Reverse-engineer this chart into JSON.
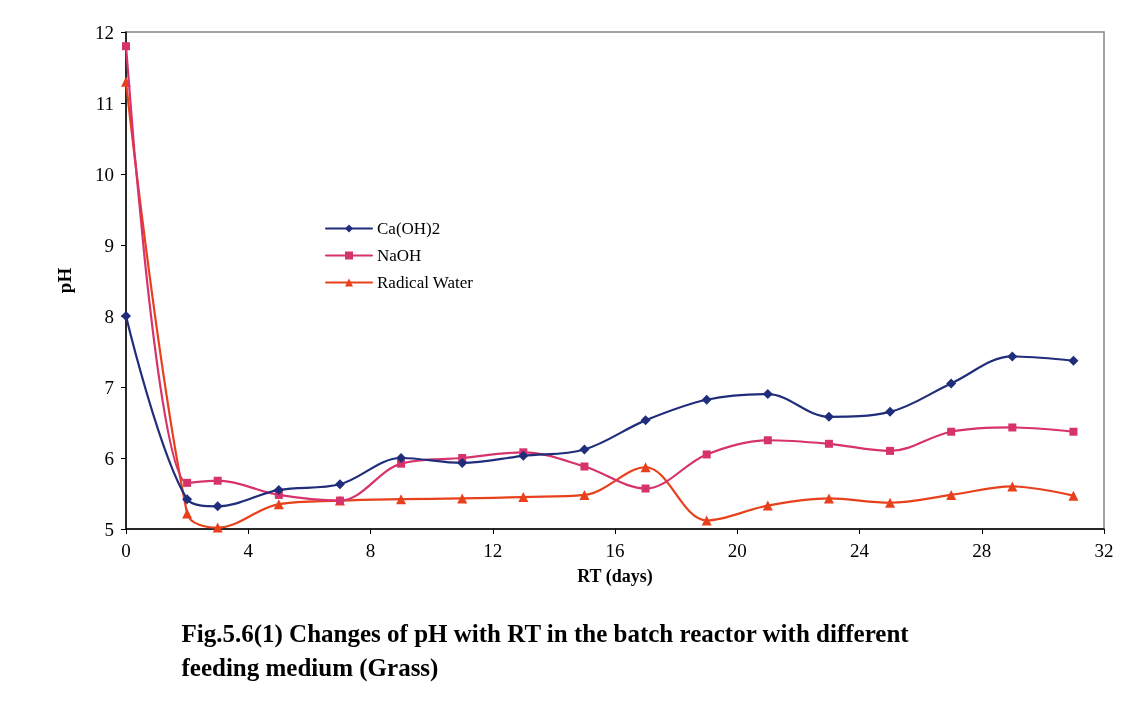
{
  "chart_data": {
    "type": "line",
    "title": "Fig.5.6(1) Changes of pH with RT in the batch reactor with different feeding medium (Grass)",
    "xlabel": "RT (days)",
    "ylabel": "pH",
    "x": [
      0,
      2,
      3,
      5,
      7,
      9,
      11,
      13,
      15,
      17,
      19,
      21,
      23,
      25,
      27,
      29,
      31
    ],
    "series": [
      {
        "name": "Ca(OH)2",
        "color": "#1f2d7b",
        "marker": "diamond",
        "values": [
          8.0,
          5.42,
          5.32,
          5.55,
          5.63,
          6.0,
          5.93,
          6.03,
          6.12,
          6.53,
          6.82,
          6.9,
          6.58,
          6.65,
          7.05,
          7.43,
          7.37
        ]
      },
      {
        "name": "NaOH",
        "color": "#d6336c",
        "marker": "square",
        "values": [
          11.8,
          5.65,
          5.68,
          5.48,
          5.4,
          5.92,
          6.0,
          6.08,
          5.88,
          5.57,
          6.05,
          6.25,
          6.2,
          6.1,
          6.37,
          6.43,
          6.37
        ]
      },
      {
        "name": "Radical Water",
        "color": "#e8401c",
        "marker": "triangle",
        "values": [
          11.3,
          5.22,
          5.02,
          5.35,
          5.4,
          5.42,
          5.43,
          5.45,
          5.48,
          5.87,
          5.12,
          5.33,
          5.43,
          5.37,
          5.48,
          5.6,
          5.47
        ]
      }
    ],
    "xlim": [
      0,
      32
    ],
    "xticks": [
      0,
      4,
      8,
      12,
      16,
      20,
      24,
      28,
      32
    ],
    "ylim": [
      5,
      12
    ],
    "yticks": [
      5,
      6,
      7,
      8,
      9,
      10,
      11,
      12
    ],
    "grid": false,
    "legend": "left",
    "line_style": "solid"
  }
}
